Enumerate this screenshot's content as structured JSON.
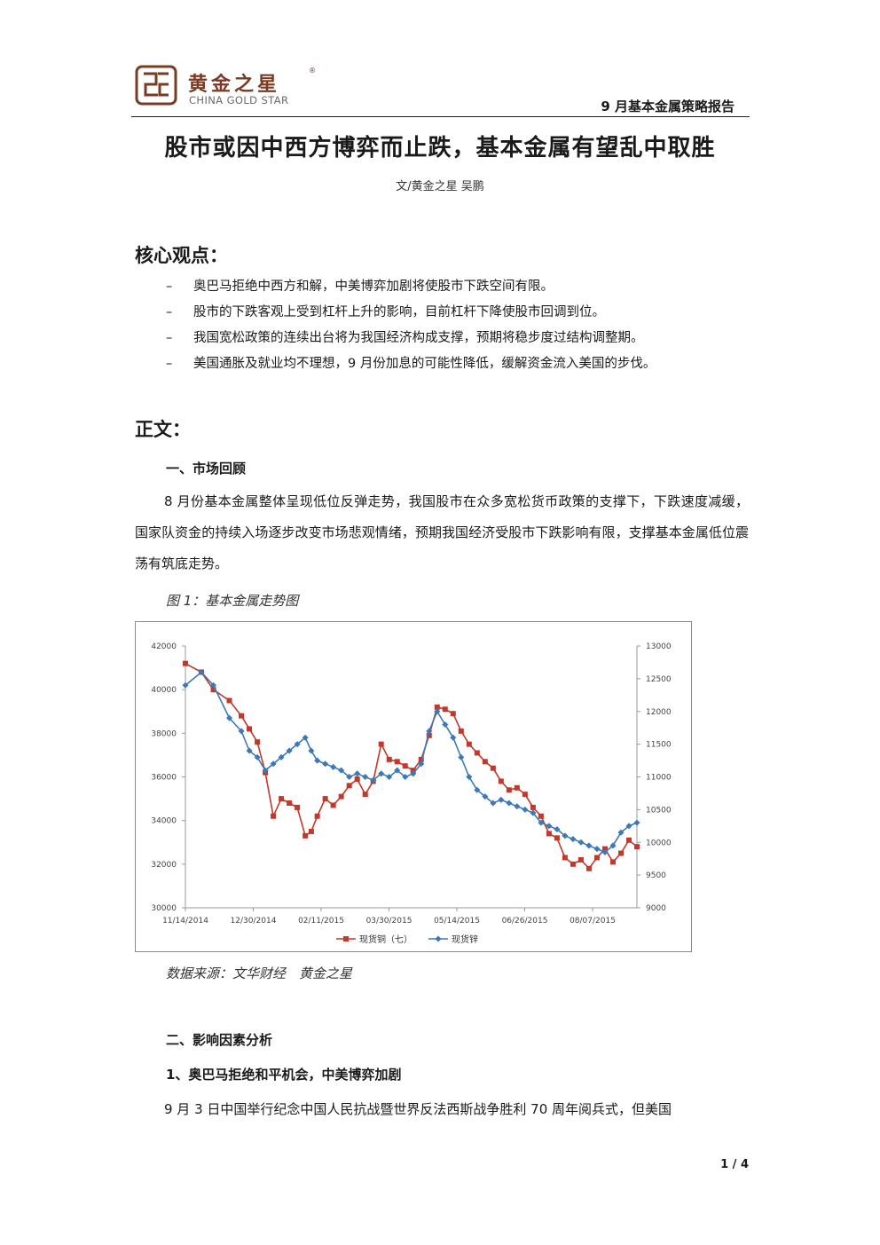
{
  "header": {
    "logo_cn": "黄金之星",
    "logo_reg": "®",
    "logo_en": "CHINA GOLD STAR",
    "report_name": "9 月基本金属策略报告",
    "brand_color": "#7a3b22"
  },
  "title": "股市或因中西方博弈而止跌，基本金属有望乱中取胜",
  "byline": "文/黄金之星 吴鹏",
  "core_views": {
    "heading": "核心观点：",
    "bullet_marker": "–",
    "items": [
      "奥巴马拒绝中西方和解，中美博弈加剧将使股市下跌空间有限。",
      "股市的下跌客观上受到杠杆上升的影响，目前杠杆下降使股市回调到位。",
      "我国宽松政策的连续出台将为我国经济构成支撑，预期将稳步度过结构调整期。",
      "美国通胀及就业均不理想，9 月份加息的可能性降低，缓解资金流入美国的步伐。"
    ]
  },
  "body": {
    "heading": "正文：",
    "section1_title": "一、市场回顾",
    "section1_para": "8 月份基本金属整体呈现低位反弹走势，我国股市在众多宽松货币政策的支撑下，下跌速度减缓，国家队资金的持续入场逐步改变市场悲观情绪，预期我国经济受股市下跌影响有限，支撑基本金属低位震荡有筑底走势。",
    "figure_caption": "图 1：基本金属走势图",
    "source_note": "数据来源：文华财经　黄金之星",
    "section2_title": "二、影响因素分析",
    "subsection_title": "1、奥巴马拒绝和平机会，中美博弈加剧",
    "section2_para": "9 月 3 日中国举行纪念中国人民抗战暨世界反法西斯战争胜利 70 周年阅兵式，但美国"
  },
  "chart_data": {
    "type": "line",
    "x_tick_labels": [
      "11/14/2014",
      "12/30/2014",
      "02/11/2015",
      "03/30/2015",
      "05/14/2015",
      "06/26/2015",
      "08/07/2015"
    ],
    "x_range": [
      "11/14/2014",
      "09/01/2015"
    ],
    "left_axis": {
      "ticks": [
        30000,
        32000,
        34000,
        36000,
        38000,
        40000,
        42000
      ],
      "range": [
        30000,
        42000
      ]
    },
    "right_axis": {
      "ticks": [
        9000,
        9500,
        10000,
        10500,
        11000,
        11500,
        12000,
        12500,
        13000
      ],
      "range": [
        9000,
        13000
      ]
    },
    "legend_position": "bottom",
    "grid": false,
    "series": [
      {
        "name": "现货铜（七）",
        "axis": "left",
        "color": "#c0392b",
        "marker": "square",
        "points": [
          [
            0,
            41200
          ],
          [
            8,
            40800
          ],
          [
            14,
            40000
          ],
          [
            22,
            39500
          ],
          [
            28,
            38800
          ],
          [
            32,
            38200
          ],
          [
            36,
            37600
          ],
          [
            40,
            36200
          ],
          [
            44,
            34200
          ],
          [
            48,
            35000
          ],
          [
            52,
            34800
          ],
          [
            56,
            34600
          ],
          [
            60,
            33300
          ],
          [
            63,
            33500
          ],
          [
            66,
            34200
          ],
          [
            70,
            35000
          ],
          [
            74,
            34700
          ],
          [
            78,
            35100
          ],
          [
            82,
            35600
          ],
          [
            86,
            35900
          ],
          [
            90,
            35200
          ],
          [
            94,
            35800
          ],
          [
            98,
            37500
          ],
          [
            102,
            36800
          ],
          [
            106,
            36700
          ],
          [
            110,
            36500
          ],
          [
            114,
            36300
          ],
          [
            118,
            36800
          ],
          [
            122,
            37900
          ],
          [
            126,
            39200
          ],
          [
            130,
            39100
          ],
          [
            134,
            38900
          ],
          [
            138,
            38100
          ],
          [
            142,
            37500
          ],
          [
            146,
            37100
          ],
          [
            150,
            36700
          ],
          [
            154,
            36400
          ],
          [
            158,
            35800
          ],
          [
            162,
            35400
          ],
          [
            166,
            35500
          ],
          [
            170,
            35200
          ],
          [
            174,
            34600
          ],
          [
            178,
            34200
          ],
          [
            182,
            33400
          ],
          [
            186,
            33200
          ],
          [
            190,
            32300
          ],
          [
            194,
            32000
          ],
          [
            198,
            32200
          ],
          [
            202,
            31800
          ],
          [
            206,
            32300
          ],
          [
            210,
            32700
          ],
          [
            214,
            32100
          ],
          [
            218,
            32500
          ],
          [
            222,
            33100
          ],
          [
            226,
            32800
          ]
        ]
      },
      {
        "name": "现货锌",
        "axis": "right",
        "color": "#3d78b7",
        "marker": "diamond",
        "points": [
          [
            0,
            12400
          ],
          [
            8,
            12600
          ],
          [
            14,
            12400
          ],
          [
            22,
            11900
          ],
          [
            28,
            11700
          ],
          [
            32,
            11400
          ],
          [
            36,
            11300
          ],
          [
            40,
            11100
          ],
          [
            44,
            11200
          ],
          [
            48,
            11300
          ],
          [
            52,
            11400
          ],
          [
            56,
            11500
          ],
          [
            60,
            11600
          ],
          [
            63,
            11400
          ],
          [
            66,
            11250
          ],
          [
            70,
            11200
          ],
          [
            74,
            11150
          ],
          [
            78,
            11100
          ],
          [
            82,
            11000
          ],
          [
            86,
            11050
          ],
          [
            90,
            11000
          ],
          [
            94,
            10950
          ],
          [
            98,
            11050
          ],
          [
            102,
            11000
          ],
          [
            106,
            11100
          ],
          [
            110,
            11000
          ],
          [
            114,
            11050
          ],
          [
            118,
            11200
          ],
          [
            122,
            11700
          ],
          [
            126,
            12000
          ],
          [
            130,
            11800
          ],
          [
            134,
            11600
          ],
          [
            138,
            11300
          ],
          [
            142,
            11000
          ],
          [
            146,
            10800
          ],
          [
            150,
            10700
          ],
          [
            154,
            10600
          ],
          [
            158,
            10650
          ],
          [
            162,
            10600
          ],
          [
            166,
            10550
          ],
          [
            170,
            10500
          ],
          [
            174,
            10450
          ],
          [
            178,
            10300
          ],
          [
            182,
            10250
          ],
          [
            186,
            10200
          ],
          [
            190,
            10100
          ],
          [
            194,
            10050
          ],
          [
            198,
            10000
          ],
          [
            202,
            9950
          ],
          [
            206,
            9900
          ],
          [
            210,
            9850
          ],
          [
            214,
            9950
          ],
          [
            218,
            10150
          ],
          [
            222,
            10250
          ],
          [
            226,
            10300
          ]
        ]
      }
    ]
  },
  "page_number": "1 / 4"
}
